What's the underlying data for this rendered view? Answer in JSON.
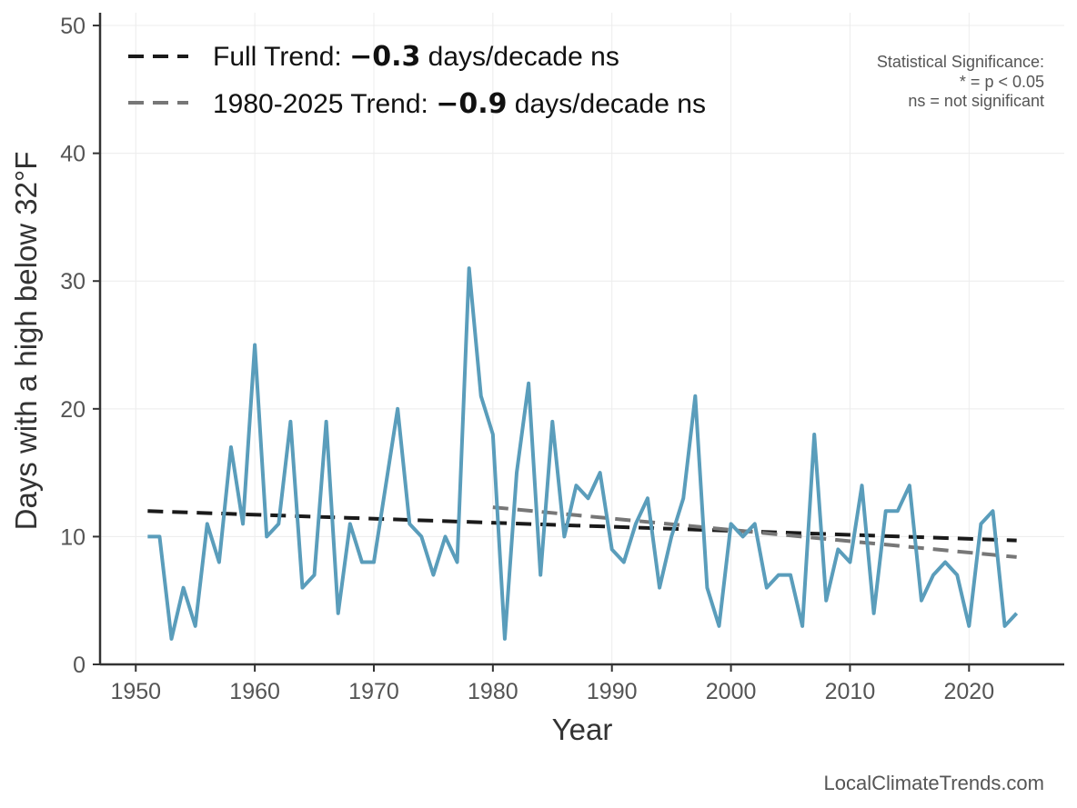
{
  "chart_data": {
    "type": "line",
    "xlabel": "Year",
    "ylabel": "Days with a high below 32°F",
    "xlim": [
      1947,
      2028
    ],
    "ylim": [
      0,
      51
    ],
    "xticks": [
      1950,
      1960,
      1970,
      1980,
      1990,
      2000,
      2010,
      2020
    ],
    "yticks": [
      0,
      10,
      20,
      30,
      40,
      50
    ],
    "grid": true,
    "series": [
      {
        "name": "Days with a high below 32°F",
        "color": "#5a9dbb",
        "x": [
          1951,
          1952,
          1953,
          1954,
          1955,
          1956,
          1957,
          1958,
          1959,
          1960,
          1961,
          1962,
          1963,
          1964,
          1965,
          1966,
          1967,
          1968,
          1969,
          1970,
          1971,
          1972,
          1973,
          1974,
          1975,
          1976,
          1977,
          1978,
          1979,
          1980,
          1981,
          1982,
          1983,
          1984,
          1985,
          1986,
          1987,
          1988,
          1989,
          1990,
          1991,
          1992,
          1993,
          1994,
          1995,
          1996,
          1997,
          1998,
          1999,
          2000,
          2001,
          2002,
          2003,
          2004,
          2005,
          2006,
          2007,
          2008,
          2009,
          2010,
          2011,
          2012,
          2013,
          2014,
          2015,
          2016,
          2017,
          2018,
          2019,
          2020,
          2021,
          2022,
          2023,
          2024
        ],
        "values": [
          10,
          10,
          2,
          6,
          3,
          11,
          8,
          17,
          11,
          25,
          10,
          11,
          19,
          6,
          7,
          19,
          4,
          11,
          8,
          8,
          14,
          20,
          11,
          10,
          7,
          10,
          8,
          31,
          21,
          18,
          2,
          15,
          22,
          7,
          19,
          10,
          14,
          13,
          15,
          9,
          8,
          11,
          13,
          6,
          10,
          13,
          21,
          6,
          3,
          11,
          10,
          11,
          6,
          7,
          7,
          3,
          18,
          5,
          9,
          8,
          14,
          4,
          12,
          12,
          14,
          5,
          7,
          8,
          7,
          3,
          11,
          12,
          3,
          4
        ]
      },
      {
        "name": "Full Trend",
        "color": "#1a1a1a",
        "style": "dashed",
        "x": [
          1951,
          2024
        ],
        "values": [
          12.0,
          9.7
        ]
      },
      {
        "name": "1980-2025 Trend",
        "color": "#777777",
        "style": "dashed",
        "x": [
          1980,
          2024
        ],
        "values": [
          12.3,
          8.4
        ]
      }
    ],
    "legend": {
      "placement": "top-left",
      "entries": [
        {
          "prefix": "Full Trend: ",
          "value": "−0.3",
          "suffix": " days/decade ns",
          "color": "#1a1a1a"
        },
        {
          "prefix": "1980-2025 Trend: ",
          "value": "−0.9",
          "suffix": " days/decade ns",
          "color": "#777777"
        }
      ]
    },
    "annotation": {
      "placement": "top-right",
      "lines": [
        "Statistical Significance:",
        "* = p < 0.05",
        "ns = not significant"
      ]
    }
  },
  "credit": "LocalClimateTrends.com"
}
